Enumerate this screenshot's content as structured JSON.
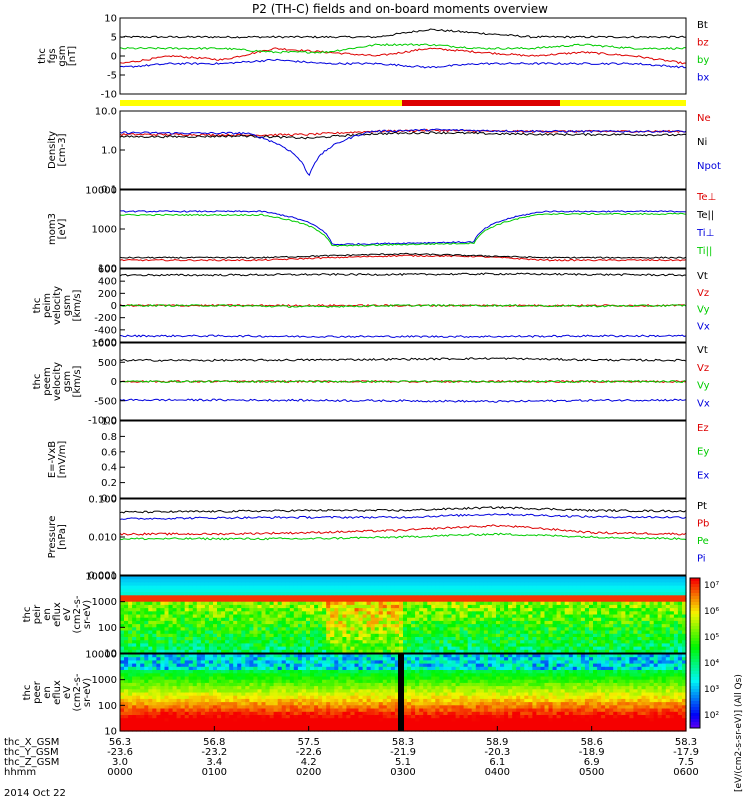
{
  "title": "P2 (TH-C) fields and on-board moments overview",
  "date_label": "2014 Oct 22",
  "colorbar_label": "[eV/(cm2-s-sr-eV)] (All Qs)",
  "colors": {
    "black": "#000000",
    "red": "#dd0000",
    "green": "#00cc00",
    "blue": "#0000dd",
    "bar_yellow": "#ffff00",
    "bar_red": "#dd0000"
  },
  "time_axis": {
    "ticks": [
      "0000",
      "0100",
      "0200",
      "0300",
      "0400",
      "0500",
      "0600"
    ],
    "rows": [
      {
        "label": "thc_X_GSM",
        "values": [
          "56.3",
          "56.8",
          "57.5",
          "58.3",
          "58.9",
          "58.6",
          "58.3"
        ]
      },
      {
        "label": "thc_Y_GSM",
        "values": [
          "-23.6",
          "-23.2",
          "-22.6",
          "-21.9",
          "-20.3",
          "-18.9",
          "-17.9"
        ]
      },
      {
        "label": "thc_Z_GSM",
        "values": [
          "3.0",
          "3.4",
          "4.2",
          "5.1",
          "6.1",
          "6.9",
          "7.5"
        ]
      },
      {
        "label": "hhmm",
        "values": [
          "0000",
          "0100",
          "0200",
          "0300",
          "0400",
          "0500",
          "0600"
        ]
      }
    ]
  },
  "chart_data": [
    {
      "type": "line",
      "ylabel_lines": [
        "thc",
        "fgs",
        "gsm",
        "[nT]"
      ],
      "ylim": [
        -10,
        10
      ],
      "y_ticks": [
        "10",
        "5",
        "0",
        "-5",
        "-10"
      ],
      "series": [
        {
          "name": "Bt",
          "color": "#000000",
          "values": [
            5,
            5,
            5,
            5,
            5,
            5,
            7,
            6,
            5,
            5,
            5,
            5
          ]
        },
        {
          "name": "bz",
          "color": "#dd0000",
          "values": [
            -2,
            0,
            -1,
            2,
            1,
            0,
            2,
            1,
            0,
            1,
            0,
            -2
          ]
        },
        {
          "name": "by",
          "color": "#00cc00",
          "values": [
            2,
            2,
            2,
            1,
            1,
            3,
            3,
            2,
            2,
            3,
            2,
            2
          ]
        },
        {
          "name": "bx",
          "color": "#0000dd",
          "values": [
            -3,
            -2,
            -2,
            -1,
            -2,
            -2,
            -3,
            -2,
            -2,
            -2,
            -2,
            -3
          ]
        }
      ]
    },
    {
      "type": "line",
      "ylabel_lines": [
        "Density",
        "[cm-3]"
      ],
      "ylim": [
        0.1,
        10
      ],
      "log": true,
      "y_ticks": [
        "10.0",
        "1.0",
        "0.1"
      ],
      "series": [
        {
          "name": "Ne",
          "color": "#dd0000",
          "values": [
            2.5,
            2.5,
            2.4,
            2.5,
            3,
            3.2,
            3,
            3,
            3,
            3
          ]
        },
        {
          "name": "Ni",
          "color": "#000000",
          "values": [
            2.2,
            2.2,
            2.3,
            2,
            2.6,
            2.8,
            2.6,
            2.5,
            2.5,
            2.4
          ]
        },
        {
          "name": "Npot",
          "color": "#0000dd",
          "values": [
            2.8,
            2.7,
            2.7,
            0.2,
            3,
            3.3,
            3.1,
            3,
            3,
            3
          ]
        }
      ]
    },
    {
      "type": "line",
      "ylabel_lines": [
        "mom3",
        "[eV]"
      ],
      "ylim": [
        10,
        10000
      ],
      "log": true,
      "y_ticks": [
        "10000",
        "1000",
        "100"
      ],
      "series": [
        {
          "name": "Te⊥",
          "color": "#dd0000",
          "values": [
            20,
            20,
            20,
            25,
            30,
            28,
            20,
            20,
            20
          ]
        },
        {
          "name": "Te||",
          "color": "#000000",
          "values": [
            25,
            25,
            25,
            30,
            35,
            30,
            25,
            25,
            25
          ]
        },
        {
          "name": "Ti⊥",
          "color": "#0000dd",
          "values": [
            1500,
            1500,
            1500,
            80,
            90,
            100,
            1500,
            1500,
            1500
          ]
        },
        {
          "name": "Ti||",
          "color": "#00cc00",
          "values": [
            1100,
            1100,
            1100,
            70,
            80,
            90,
            1200,
            1200,
            1200
          ]
        }
      ]
    },
    {
      "type": "line",
      "ylabel_lines": [
        "thc",
        "peim",
        "velocity",
        "gsm",
        "[km/s]"
      ],
      "ylim": [
        -600,
        600
      ],
      "y_ticks": [
        "600",
        "400",
        "200",
        "0",
        "-200",
        "-400",
        "-600"
      ],
      "series": [
        {
          "name": "Vt",
          "color": "#000000",
          "values": [
            500,
            500,
            510,
            510,
            520,
            510,
            500
          ]
        },
        {
          "name": "Vz",
          "color": "#dd0000",
          "values": [
            0,
            0,
            0,
            0,
            0,
            0,
            0
          ]
        },
        {
          "name": "Vy",
          "color": "#00cc00",
          "values": [
            0,
            0,
            -20,
            0,
            0,
            -10,
            0
          ]
        },
        {
          "name": "Vx",
          "color": "#0000dd",
          "values": [
            -500,
            -500,
            -510,
            -510,
            -510,
            -500,
            -500
          ]
        }
      ]
    },
    {
      "type": "line",
      "ylabel_lines": [
        "thc",
        "peem",
        "velocity",
        "gsm",
        "[km/s]"
      ],
      "ylim": [
        -1000,
        1000
      ],
      "y_ticks": [
        "1000",
        "500",
        "0",
        "-500",
        "-1000"
      ],
      "series": [
        {
          "name": "Vt",
          "color": "#000000",
          "values": [
            550,
            550,
            560,
            580,
            600,
            560,
            550
          ]
        },
        {
          "name": "Vz",
          "color": "#dd0000",
          "values": [
            0,
            0,
            0,
            0,
            0,
            0,
            0
          ]
        },
        {
          "name": "Vy",
          "color": "#00cc00",
          "values": [
            0,
            0,
            0,
            0,
            0,
            0,
            0
          ]
        },
        {
          "name": "Vx",
          "color": "#0000dd",
          "values": [
            -480,
            -480,
            -490,
            -500,
            -520,
            -490,
            -480
          ]
        }
      ]
    },
    {
      "type": "line",
      "ylabel_lines": [
        "E=-VxB",
        "[mV/m]"
      ],
      "ylim": [
        0,
        1
      ],
      "y_ticks": [
        "1.0",
        "0.8",
        "0.6",
        "0.4",
        "0.2",
        "0.0"
      ],
      "series": [
        {
          "name": "Ez",
          "color": "#dd0000",
          "values": []
        },
        {
          "name": "Ey",
          "color": "#00cc00",
          "values": []
        },
        {
          "name": "Ex",
          "color": "#0000dd",
          "values": []
        }
      ]
    },
    {
      "type": "line",
      "ylabel_lines": [
        "Pressure",
        "[nPa]"
      ],
      "ylim": [
        0.001,
        0.1
      ],
      "log": true,
      "y_ticks": [
        "0.100",
        "0.010",
        "0.001"
      ],
      "series": [
        {
          "name": "Pt",
          "color": "#000000",
          "values": [
            0.045,
            0.047,
            0.05,
            0.05,
            0.06,
            0.05,
            0.048
          ]
        },
        {
          "name": "Pb",
          "color": "#dd0000",
          "values": [
            0.012,
            0.012,
            0.013,
            0.015,
            0.02,
            0.013,
            0.012
          ]
        },
        {
          "name": "Pe",
          "color": "#00cc00",
          "values": [
            0.009,
            0.009,
            0.009,
            0.01,
            0.012,
            0.01,
            0.009
          ]
        },
        {
          "name": "Pi",
          "color": "#0000dd",
          "values": [
            0.03,
            0.032,
            0.033,
            0.033,
            0.04,
            0.034,
            0.033
          ]
        }
      ]
    },
    {
      "type": "heatmap",
      "ylabel_lines": [
        "thc",
        "peir",
        "en",
        "eflux",
        "eV",
        "(cm2-s-",
        "sr-eV)"
      ],
      "ylim": [
        10,
        10000
      ],
      "log": true,
      "y_ticks": [
        "10000",
        "1000",
        "100",
        "10"
      ]
    },
    {
      "type": "heatmap",
      "ylabel_lines": [
        "thc",
        "peer",
        "en",
        "eflux",
        "eV",
        "(cm2-s-",
        "sr-eV)"
      ],
      "ylim": [
        10,
        10000
      ],
      "log": true,
      "y_ticks": [
        "10000",
        "1000",
        "100",
        "10"
      ]
    }
  ],
  "colorbar": {
    "ticks": [
      "10⁷",
      "10⁶",
      "10⁵",
      "10⁴",
      "10³",
      "10²"
    ]
  }
}
